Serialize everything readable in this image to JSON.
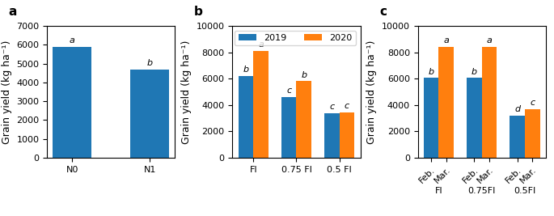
{
  "chart_data": [
    {
      "type": "bar",
      "title": "a",
      "categories": [
        "N0",
        "N1"
      ],
      "values": [
        5900,
        4700
      ],
      "annotations": [
        "a",
        "b"
      ],
      "ylabel": "Grain yield (kg ha⁻¹)",
      "ylim": [
        0,
        7000
      ],
      "yticks": [
        0,
        1000,
        2000,
        3000,
        4000,
        5000,
        6000,
        7000
      ]
    },
    {
      "type": "bar",
      "title": "b",
      "categories": [
        "FI",
        "0.75 FI",
        "0.5 FI"
      ],
      "series": [
        {
          "name": "2019",
          "values": [
            6200,
            4600,
            3400
          ],
          "annotations": [
            "b",
            "c",
            "c"
          ]
        },
        {
          "name": "2020",
          "values": [
            8100,
            5800,
            3450
          ],
          "annotations": [
            "a",
            "b",
            "c"
          ]
        }
      ],
      "legend": "upper right",
      "ylabel": "Grain yield (kg ha⁻¹)",
      "ylim": [
        0,
        10000
      ],
      "yticks": [
        0,
        2000,
        4000,
        6000,
        8000,
        10000
      ]
    },
    {
      "type": "bar",
      "title": "c",
      "categories": [
        "FI",
        "0.75FI",
        "0.5FI"
      ],
      "series": [
        {
          "name": "Feb.",
          "values": [
            6050,
            6050,
            3200
          ],
          "annotations": [
            "b",
            "b",
            "d"
          ]
        },
        {
          "name": "Mar.",
          "values": [
            8400,
            8400,
            3700
          ],
          "annotations": [
            "a",
            "a",
            "c"
          ]
        }
      ],
      "ylabel": "Grain yield (kg ha⁻¹)",
      "ylim": [
        0,
        10000
      ],
      "yticks": [
        0,
        2000,
        4000,
        6000,
        8000,
        10000
      ]
    }
  ]
}
